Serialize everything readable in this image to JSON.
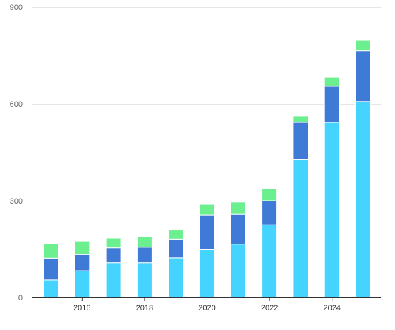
{
  "chart_data": {
    "type": "bar",
    "stacked": true,
    "title": "",
    "xlabel": "",
    "ylabel": "",
    "categories": [
      2015,
      2016,
      2017,
      2018,
      2019,
      2020,
      2021,
      2022,
      2023,
      2024,
      2025
    ],
    "x_tick_labels": [
      "2016",
      "2018",
      "2020",
      "2022",
      "2024"
    ],
    "y_ticks": [
      0,
      300,
      600,
      900
    ],
    "y_tick_labels": [
      "0",
      "300",
      "600",
      "900"
    ],
    "ylim": [
      0,
      900
    ],
    "grid": true,
    "legend": "none",
    "series": [
      {
        "color": "#45d4ff",
        "values": [
          55,
          83,
          108,
          108,
          123,
          148,
          165,
          225,
          428,
          543,
          607
        ]
      },
      {
        "color": "#3f7ad6",
        "values": [
          67,
          50,
          46,
          48,
          58,
          108,
          93,
          75,
          115,
          112,
          158
        ]
      },
      {
        "color": "#6cf08f",
        "values": [
          45,
          42,
          30,
          33,
          28,
          33,
          38,
          37,
          20,
          28,
          32
        ]
      }
    ]
  }
}
